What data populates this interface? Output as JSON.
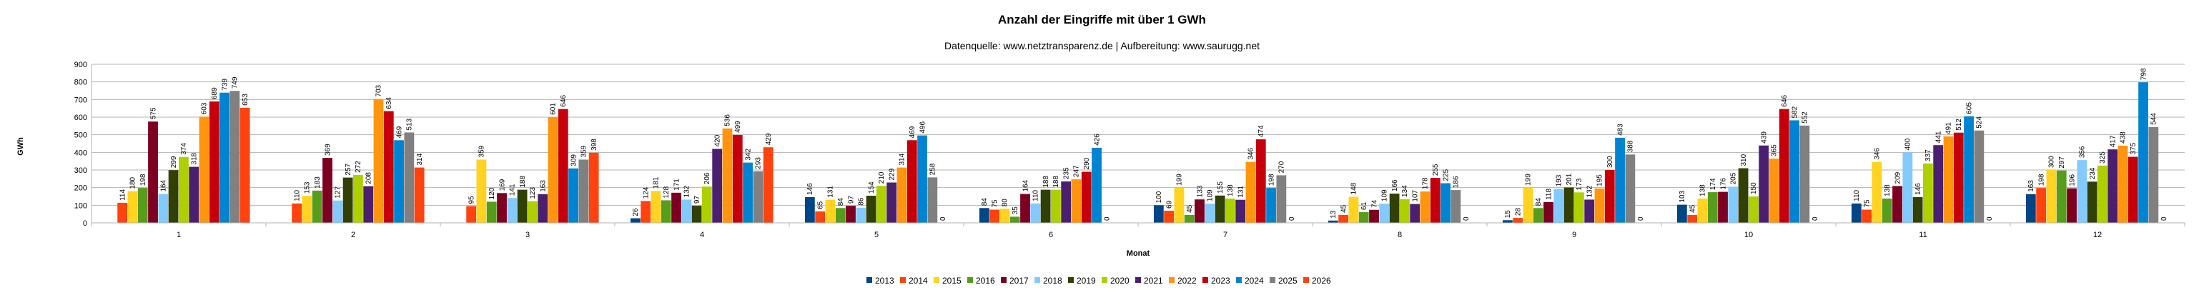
{
  "chart_data": {
    "type": "bar",
    "title": "Anzahl der Eingriffe mit über 1 GWh",
    "subtitle": "Datenquelle: www.netztransparenz.de  | Aufbereitung: www.saurugg.net",
    "xlabel": "Monat",
    "ylabel": "GWh",
    "ylim": [
      0,
      900
    ],
    "yticks": [
      0,
      100,
      200,
      300,
      400,
      500,
      600,
      700,
      800,
      900
    ],
    "grid": true,
    "legend_position": "bottom",
    "categories": [
      "1",
      "2",
      "3",
      "4",
      "5",
      "6",
      "7",
      "8",
      "9",
      "10",
      "11",
      "12"
    ],
    "series": [
      {
        "name": "2013",
        "color": "#004586",
        "values": [
          null,
          null,
          null,
          26,
          146,
          84,
          100,
          13,
          15,
          103,
          110,
          163
        ]
      },
      {
        "name": "2014",
        "color": "#ff420e",
        "values": [
          114,
          110,
          95,
          124,
          65,
          75,
          69,
          45,
          28,
          45,
          75,
          198
        ]
      },
      {
        "name": "2015",
        "color": "#ffd320",
        "values": [
          180,
          153,
          359,
          181,
          131,
          80,
          199,
          148,
          199,
          138,
          346,
          300
        ]
      },
      {
        "name": "2016",
        "color": "#579d1c",
        "values": [
          198,
          183,
          120,
          128,
          84,
          35,
          45,
          61,
          84,
          174,
          138,
          297
        ]
      },
      {
        "name": "2017",
        "color": "#7e0021",
        "values": [
          575,
          369,
          169,
          171,
          97,
          164,
          133,
          74,
          118,
          176,
          209,
          196
        ]
      },
      {
        "name": "2018",
        "color": "#83caff",
        "values": [
          164,
          127,
          141,
          132,
          86,
          110,
          109,
          109,
          193,
          205,
          400,
          356
        ]
      },
      {
        "name": "2019",
        "color": "#314004",
        "values": [
          299,
          257,
          188,
          97,
          154,
          188,
          155,
          166,
          201,
          310,
          146,
          234
        ]
      },
      {
        "name": "2020",
        "color": "#aecf00",
        "values": [
          374,
          272,
          123,
          206,
          210,
          188,
          138,
          134,
          173,
          150,
          337,
          325
        ]
      },
      {
        "name": "2021",
        "color": "#4b1f6f",
        "values": [
          318,
          208,
          163,
          420,
          229,
          235,
          131,
          107,
          132,
          439,
          441,
          417
        ]
      },
      {
        "name": "2022",
        "color": "#ff950e",
        "values": [
          603,
          703,
          601,
          536,
          314,
          247,
          346,
          178,
          195,
          365,
          491,
          438
        ]
      },
      {
        "name": "2023",
        "color": "#c5000b",
        "values": [
          689,
          634,
          646,
          499,
          469,
          290,
          474,
          255,
          300,
          646,
          512,
          375
        ]
      },
      {
        "name": "2024",
        "color": "#0084d1",
        "values": [
          739,
          469,
          309,
          342,
          496,
          426,
          198,
          225,
          483,
          582,
          605,
          798
        ]
      },
      {
        "name": "2025",
        "color": "#808080",
        "values": [
          749,
          513,
          359,
          293,
          258,
          0,
          270,
          186,
          388,
          552,
          524,
          544
        ]
      },
      {
        "name": "2026",
        "color": "#ff420e",
        "values": [
          653,
          314,
          398,
          429,
          0,
          null,
          0,
          0,
          0,
          0,
          0,
          0
        ]
      }
    ]
  }
}
